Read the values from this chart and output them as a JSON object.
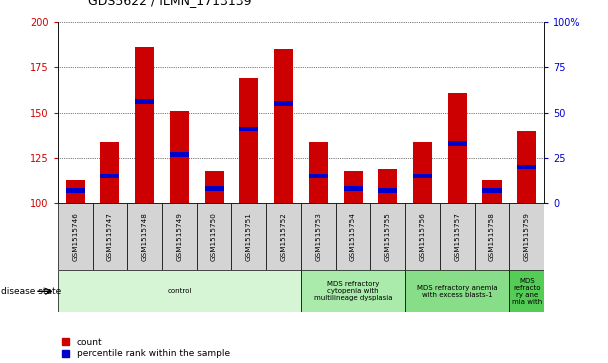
{
  "title": "GDS5622 / ILMN_1713139",
  "samples": [
    "GSM1515746",
    "GSM1515747",
    "GSM1515748",
    "GSM1515749",
    "GSM1515750",
    "GSM1515751",
    "GSM1515752",
    "GSM1515753",
    "GSM1515754",
    "GSM1515755",
    "GSM1515756",
    "GSM1515757",
    "GSM1515758",
    "GSM1515759"
  ],
  "counts": [
    113,
    134,
    186,
    151,
    118,
    169,
    185,
    134,
    118,
    119,
    134,
    161,
    113,
    140
  ],
  "percentile_values": [
    107,
    115,
    156,
    127,
    108,
    141,
    155,
    115,
    108,
    107,
    115,
    133,
    107,
    120
  ],
  "ylim_left": [
    100,
    200
  ],
  "ylim_right": [
    0,
    100
  ],
  "yticks_left": [
    100,
    125,
    150,
    175,
    200
  ],
  "yticks_right": [
    0,
    25,
    50,
    75,
    100
  ],
  "groups": [
    {
      "label": "control",
      "start": 0,
      "end": 7,
      "color": "#d5f5d5"
    },
    {
      "label": "MDS refractory\ncytopenia with\nmultilineage dysplasia",
      "start": 7,
      "end": 10,
      "color": "#aaeaaa"
    },
    {
      "label": "MDS refractory anemia\nwith excess blasts-1",
      "start": 10,
      "end": 13,
      "color": "#88dd88"
    },
    {
      "label": "MDS\nrefracto\nry ane\nmia with",
      "start": 13,
      "end": 14,
      "color": "#55cc55"
    }
  ],
  "bar_color": "#cc0000",
  "percentile_color": "#0000cc",
  "bar_width": 0.55,
  "background_color": "#ffffff",
  "plot_bg_color": "#ffffff",
  "grid_color": "#000000",
  "tick_label_color_left": "#cc0000",
  "tick_label_color_right": "#0000cc",
  "disease_state_label": "disease state",
  "legend_items": [
    "count",
    "percentile rank within the sample"
  ],
  "cell_bg": "#d4d4d4",
  "right_top_label": "100%"
}
